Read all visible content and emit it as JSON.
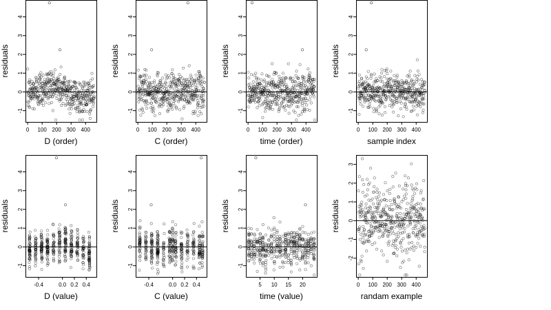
{
  "chart_data": [
    {
      "type": "scatter",
      "xlabel": "D (order)",
      "ylabel": "residuals",
      "xlim": [
        -15,
        475
      ],
      "ylim": [
        -1.6,
        4.9
      ],
      "xticks": [
        0,
        100,
        200,
        300,
        400
      ],
      "yticks": [
        -1,
        0,
        1,
        2,
        3,
        4
      ],
      "ytick_labels": [
        "-1",
        "0",
        "1",
        "2",
        "3",
        "4"
      ],
      "reference_line_y": 0,
      "grid": false,
      "marker": "open-circle",
      "n_points": 460,
      "x_kind": "order",
      "x_range": [
        0,
        460
      ],
      "y_kind": "order-trend",
      "y_spread": 0.5,
      "outliers": [
        {
          "x": 150,
          "y": 4.75
        },
        {
          "x": 223,
          "y": 2.25
        }
      ]
    },
    {
      "type": "scatter",
      "xlabel": "C (order)",
      "ylabel": "residuals",
      "xlim": [
        -15,
        475
      ],
      "ylim": [
        -1.6,
        4.9
      ],
      "xticks": [
        0,
        100,
        200,
        300,
        400
      ],
      "yticks": [
        -1,
        0,
        1,
        2,
        3,
        4
      ],
      "ytick_labels": [
        "-1",
        "0",
        "1",
        "2",
        "3",
        "4"
      ],
      "reference_line_y": 0,
      "grid": false,
      "marker": "open-circle",
      "n_points": 460,
      "x_kind": "order",
      "x_range": [
        0,
        460
      ],
      "y_kind": "order-flat",
      "y_spread": 0.5,
      "outliers": [
        {
          "x": 345,
          "y": 4.75
        },
        {
          "x": 95,
          "y": 2.25
        }
      ]
    },
    {
      "type": "scatter",
      "xlabel": "time (order)",
      "ylabel": "residuals",
      "xlim": [
        -15,
        475
      ],
      "ylim": [
        -1.6,
        4.9
      ],
      "xticks": [
        0,
        100,
        200,
        300,
        400
      ],
      "yticks": [
        -1,
        0,
        1,
        2,
        3,
        4
      ],
      "ytick_labels": [
        "-1",
        "0",
        "1",
        "2",
        "3",
        "4"
      ],
      "reference_line_y": 0,
      "grid": false,
      "marker": "open-circle",
      "n_points": 460,
      "x_kind": "order",
      "x_range": [
        0,
        460
      ],
      "y_kind": "order-flat",
      "y_spread": 0.5,
      "outliers": [
        {
          "x": 28,
          "y": 4.75
        },
        {
          "x": 375,
          "y": 2.25
        }
      ]
    },
    {
      "type": "scatter",
      "xlabel": "sample index",
      "ylabel": "residuals",
      "xlim": [
        -15,
        475
      ],
      "ylim": [
        -1.6,
        4.9
      ],
      "xticks": [
        0,
        100,
        200,
        300,
        400
      ],
      "yticks": [
        -1,
        0,
        1,
        2,
        3,
        4
      ],
      "ytick_labels": [
        "-1",
        "0",
        "1",
        "2",
        "3",
        "4"
      ],
      "reference_line_y": 0,
      "grid": false,
      "marker": "open-circle",
      "n_points": 460,
      "x_kind": "order",
      "x_range": [
        0,
        460
      ],
      "y_kind": "order-flat",
      "y_spread": 0.5,
      "outliers": [
        {
          "x": 90,
          "y": 4.75
        },
        {
          "x": 55,
          "y": 2.25
        }
      ]
    },
    {
      "type": "scatter",
      "xlabel": "D (value)",
      "ylabel": "residuals",
      "xlim": [
        -0.62,
        0.57
      ],
      "ylim": [
        -1.6,
        4.9
      ],
      "xticks": [
        -0.4,
        0.0,
        0.2,
        0.4
      ],
      "xtick_labels": [
        "-0.4",
        "0.0",
        "0.2",
        "0.4"
      ],
      "yticks": [
        -1,
        0,
        1,
        2,
        3,
        4
      ],
      "ytick_labels": [
        "-1",
        "0",
        "1",
        "2",
        "3",
        "4"
      ],
      "reference_line_y": 0,
      "grid": false,
      "marker": "open-circle",
      "n_points": 460,
      "x_kind": "levels",
      "x_levels": [
        -0.55,
        -0.45,
        -0.35,
        -0.25,
        -0.15,
        -0.05,
        0.05,
        0.15,
        0.25,
        0.35,
        0.45
      ],
      "x_jitter": 0.01,
      "y_kind": "level-mean",
      "level_means": [
        -0.1,
        -0.15,
        -0.1,
        -0.05,
        0.05,
        0.2,
        0.3,
        0.1,
        0.0,
        -0.15,
        -0.3
      ],
      "y_spread": 0.45,
      "outliers": [
        {
          "x": -0.1,
          "y": 4.75
        },
        {
          "x": 0.05,
          "y": 2.25
        }
      ]
    },
    {
      "type": "scatter",
      "xlabel": "C (value)",
      "ylabel": "residuals",
      "xlim": [
        -0.62,
        0.57
      ],
      "ylim": [
        -1.6,
        4.9
      ],
      "xticks": [
        -0.4,
        0.0,
        0.2,
        0.4
      ],
      "xtick_labels": [
        "-0.4",
        "0.0",
        "0.2",
        "0.4"
      ],
      "yticks": [
        -1,
        0,
        1,
        2,
        3,
        4
      ],
      "ytick_labels": [
        "-1",
        "0",
        "1",
        "2",
        "3",
        "4"
      ],
      "reference_line_y": 0,
      "grid": false,
      "marker": "open-circle",
      "n_points": 460,
      "x_kind": "levels",
      "x_levels": [
        -0.55,
        -0.45,
        -0.35,
        -0.25,
        -0.15,
        -0.05,
        0.0,
        0.05,
        0.15,
        0.25,
        0.35,
        0.45,
        0.5
      ],
      "x_jitter": 0.01,
      "y_kind": "level-mean",
      "level_means": [
        0.2,
        0.1,
        0.0,
        -0.1,
        -0.1,
        0.0,
        0.1,
        0.0,
        -0.1,
        0.0,
        0.05,
        0.0,
        -0.1
      ],
      "y_spread": 0.5,
      "outliers": [
        {
          "x": 0.48,
          "y": 4.75
        },
        {
          "x": -0.36,
          "y": 2.25
        }
      ]
    },
    {
      "type": "scatter",
      "xlabel": "time (value)",
      "ylabel": "residuals",
      "xlim": [
        0,
        25
      ],
      "ylim": [
        -1.6,
        4.9
      ],
      "xticks": [
        5,
        10,
        15,
        20
      ],
      "yticks": [
        -1,
        0,
        1,
        2,
        3,
        4
      ],
      "ytick_labels": [
        "-1",
        "0",
        "1",
        "2",
        "3",
        "4"
      ],
      "reference_line_y": 0,
      "grid": false,
      "marker": "open-circle",
      "n_points": 460,
      "x_kind": "levels",
      "x_levels": [
        1,
        2,
        3,
        4,
        5,
        6,
        7,
        8,
        9,
        10,
        11,
        12,
        13,
        14,
        15,
        16,
        17,
        18,
        19,
        20,
        21,
        22,
        23,
        24
      ],
      "x_jitter": 0.12,
      "y_kind": "level-mean",
      "level_means": [
        0.1,
        0.0,
        -0.1,
        0.0,
        0.1,
        0.0,
        -0.1,
        0.05,
        0.0,
        0.1,
        0.0,
        -0.05,
        0.0,
        0.1,
        0.0,
        -0.1,
        0.05,
        0.0,
        0.1,
        0.0,
        -0.05,
        0.1,
        0.0,
        -0.1
      ],
      "y_spread": 0.5,
      "outliers": [
        {
          "x": 3.5,
          "y": 4.75
        },
        {
          "x": 21,
          "y": 2.25
        }
      ]
    },
    {
      "type": "scatter",
      "xlabel": "randam example",
      "ylabel": "residuals",
      "xlim": [
        -15,
        475
      ],
      "ylim": [
        -3,
        3.5
      ],
      "xticks": [
        0,
        100,
        200,
        300,
        400
      ],
      "yticks": [
        -2,
        -1,
        0,
        1,
        2,
        3
      ],
      "ytick_labels": [
        "-2",
        "-1",
        "0",
        "1",
        "2",
        "3"
      ],
      "reference_line_y": 0,
      "grid": false,
      "marker": "open-circle",
      "n_points": 460,
      "x_kind": "order",
      "x_range": [
        0,
        460
      ],
      "y_kind": "order-flat",
      "y_spread": 1.0,
      "outliers": []
    }
  ]
}
